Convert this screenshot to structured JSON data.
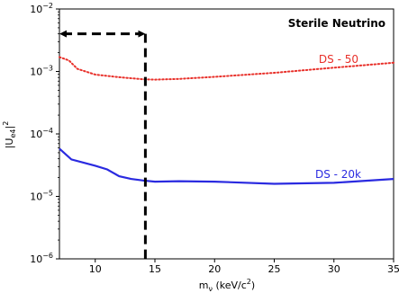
{
  "chart_data": {
    "type": "line",
    "title": "Sterile Neutrino",
    "xlabel": "m",
    "xlabel_sub": "ν",
    "xlabel_unit": " (keV/c",
    "xlabel_unit_sup": "2",
    "xlabel_unit_close": ")",
    "ylabel": "|U",
    "ylabel_sub": "e4",
    "ylabel_close": "|",
    "ylabel_sup": "2",
    "xlim": [
      7,
      35
    ],
    "ylim_log10": [
      -6,
      -2
    ],
    "y_scale": "log",
    "grid": false,
    "x_ticks": [
      "10",
      "15",
      "20",
      "25",
      "30",
      "35"
    ],
    "y_ticks": [
      {
        "base": "10",
        "exp": "−6"
      },
      {
        "base": "10",
        "exp": "−5"
      },
      {
        "base": "10",
        "exp": "−4"
      },
      {
        "base": "10",
        "exp": "−3"
      },
      {
        "base": "10",
        "exp": "−2"
      }
    ],
    "series": [
      {
        "name": "DS - 50",
        "color": "#e8302a",
        "style": "dotted",
        "x": [
          7,
          7.8,
          8.5,
          10,
          12,
          14,
          15,
          17,
          20,
          25,
          30,
          35
        ],
        "y": [
          0.0017,
          0.0015,
          0.0011,
          0.00089,
          0.00081,
          0.00075,
          0.00074,
          0.00076,
          0.00082,
          0.00095,
          0.00115,
          0.00138
        ]
      },
      {
        "name": "DS - 20k",
        "color": "#2a2ae0",
        "style": "solid",
        "x": [
          7,
          8,
          10,
          11,
          12,
          13,
          14,
          15,
          17,
          20,
          25,
          30,
          35
        ],
        "y": [
          5.8e-05,
          3.9e-05,
          3.1e-05,
          2.7e-05,
          2.1e-05,
          1.9e-05,
          1.8e-05,
          1.72e-05,
          1.75e-05,
          1.72e-05,
          1.59e-05,
          1.65e-05,
          1.9e-05
        ]
      }
    ],
    "annotation": {
      "type": "dashed-bracket",
      "color": "#000000",
      "x_start": 7,
      "x_end": 14.2,
      "y_level": 0.004,
      "double_arrow": true
    }
  }
}
